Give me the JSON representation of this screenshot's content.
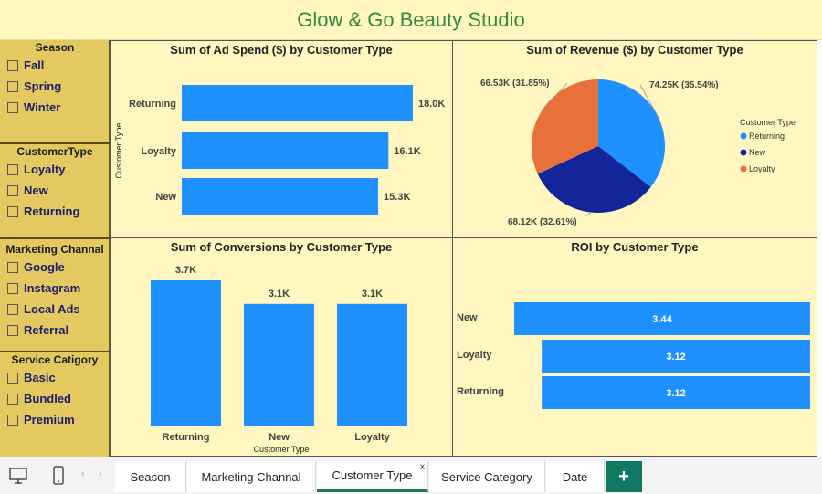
{
  "title": "Glow & Go Beauty Studio",
  "slicers": [
    {
      "title": "Season",
      "items": [
        "Fall",
        "Spring",
        "Winter"
      ]
    },
    {
      "title": "CustomerType",
      "items": [
        "Loyalty",
        "New",
        "Returning"
      ]
    },
    {
      "title": "Marketing Channal",
      "items": [
        "Google",
        "Instagram",
        "Local Ads",
        "Referral"
      ]
    },
    {
      "title": "Service Catigory",
      "items": [
        "Basic",
        "Bundled",
        "Premium"
      ]
    }
  ],
  "colors": {
    "bar": "#1e90ff",
    "pie_returning": "#1e90ff",
    "pie_new": "#14259a",
    "pie_loyalty": "#e8703a"
  },
  "chart_data": [
    {
      "type": "bar",
      "orientation": "horizontal",
      "title": "Sum of Ad Spend ($) by Customer Type",
      "ylabel": "Customer Type",
      "categories": [
        "Returning",
        "Loyalty",
        "New"
      ],
      "values": [
        18000,
        16100,
        15300
      ],
      "data_labels": [
        "18.0K",
        "16.1K",
        "15.3K"
      ]
    },
    {
      "type": "pie",
      "title": "Sum of Revenue ($) by Customer Type",
      "legend_title": "Customer Type",
      "legend_position": "right",
      "labels": [
        "Returning",
        "New",
        "Loyalty"
      ],
      "values": [
        74250,
        68120,
        66530
      ],
      "data_labels": [
        "74.25K (35.54%)",
        "68.12K (32.61%)",
        "66.53K (31.85%)"
      ]
    },
    {
      "type": "bar",
      "orientation": "vertical",
      "title": "Sum of Conversions by Customer Type",
      "xlabel": "Customer Type",
      "categories": [
        "Returning",
        "New",
        "Loyalty"
      ],
      "values": [
        3700,
        3100,
        3100
      ],
      "data_labels": [
        "3.7K",
        "3.1K",
        "3.1K"
      ]
    },
    {
      "type": "bar",
      "orientation": "horizontal",
      "title": "ROI by Customer Type",
      "categories": [
        "New",
        "Loyalty",
        "Returning"
      ],
      "values": [
        3.44,
        3.12,
        3.12
      ],
      "data_labels": [
        "3.44",
        "3.12",
        "3.12"
      ]
    }
  ],
  "tabs": [
    "Season",
    "Marketing Channal",
    "Customer Type",
    "Service Category",
    "Date"
  ],
  "active_tab": "Customer Type",
  "add_tab_label": "+",
  "icons": [
    "desktop-icon",
    "phone-icon",
    "chevron-left-icon",
    "chevron-right-icon",
    "close-icon"
  ]
}
